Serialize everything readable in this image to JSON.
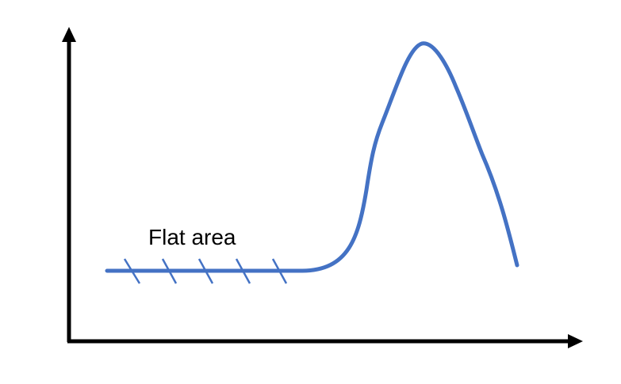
{
  "diagram": {
    "annotation": "Flat area",
    "colors": {
      "axis": "#000000",
      "curve": "#4472C4",
      "text": "#000000",
      "background": "#ffffff"
    },
    "hatch_mark_count": 5
  }
}
